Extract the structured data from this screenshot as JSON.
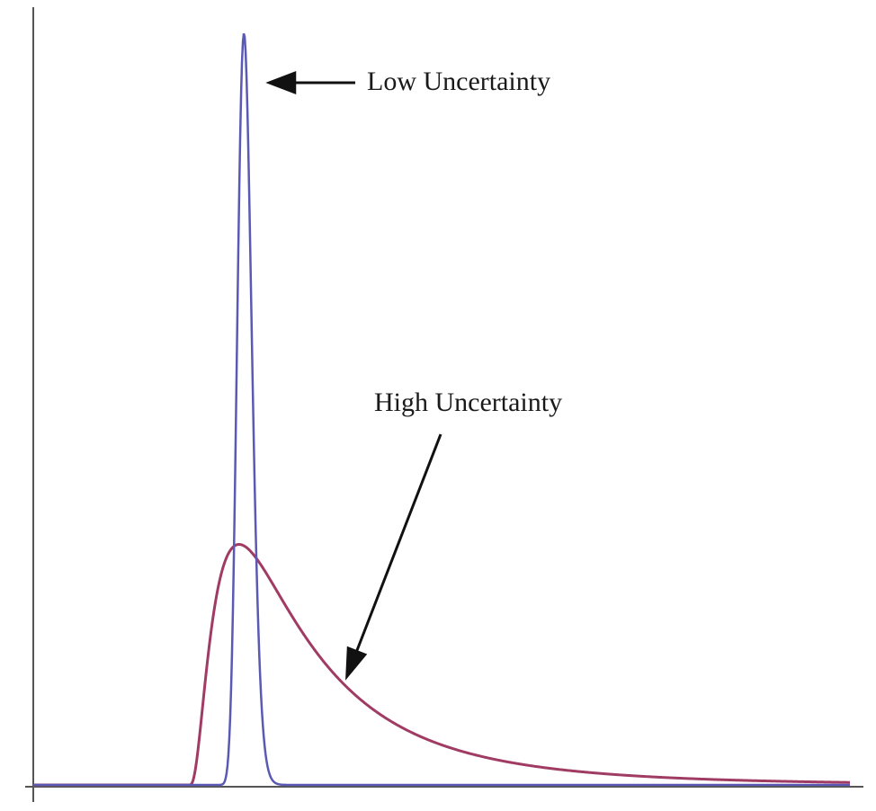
{
  "chart_data": {
    "type": "line",
    "title": "",
    "xlabel": "",
    "ylabel": "",
    "xlim": [
      0,
      10
    ],
    "ylim": [
      0,
      1
    ],
    "grid": false,
    "legend": "none",
    "x_start": 1.9,
    "series": [
      {
        "key": "low",
        "color": "#5a5ab4",
        "mode": 0.68,
        "sigma": 0.13,
        "peak": 1.0
      },
      {
        "key": "high",
        "color": "#a03c64",
        "mode": 0.62,
        "sigma": 0.85,
        "peak": 0.32
      }
    ],
    "annotations": [
      {
        "key": "low",
        "text": "Low Uncertainty",
        "target": "low-peak"
      },
      {
        "key": "high",
        "text": "High Uncertainty",
        "target": "high-tail",
        "target_x": 3.8
      }
    ]
  }
}
